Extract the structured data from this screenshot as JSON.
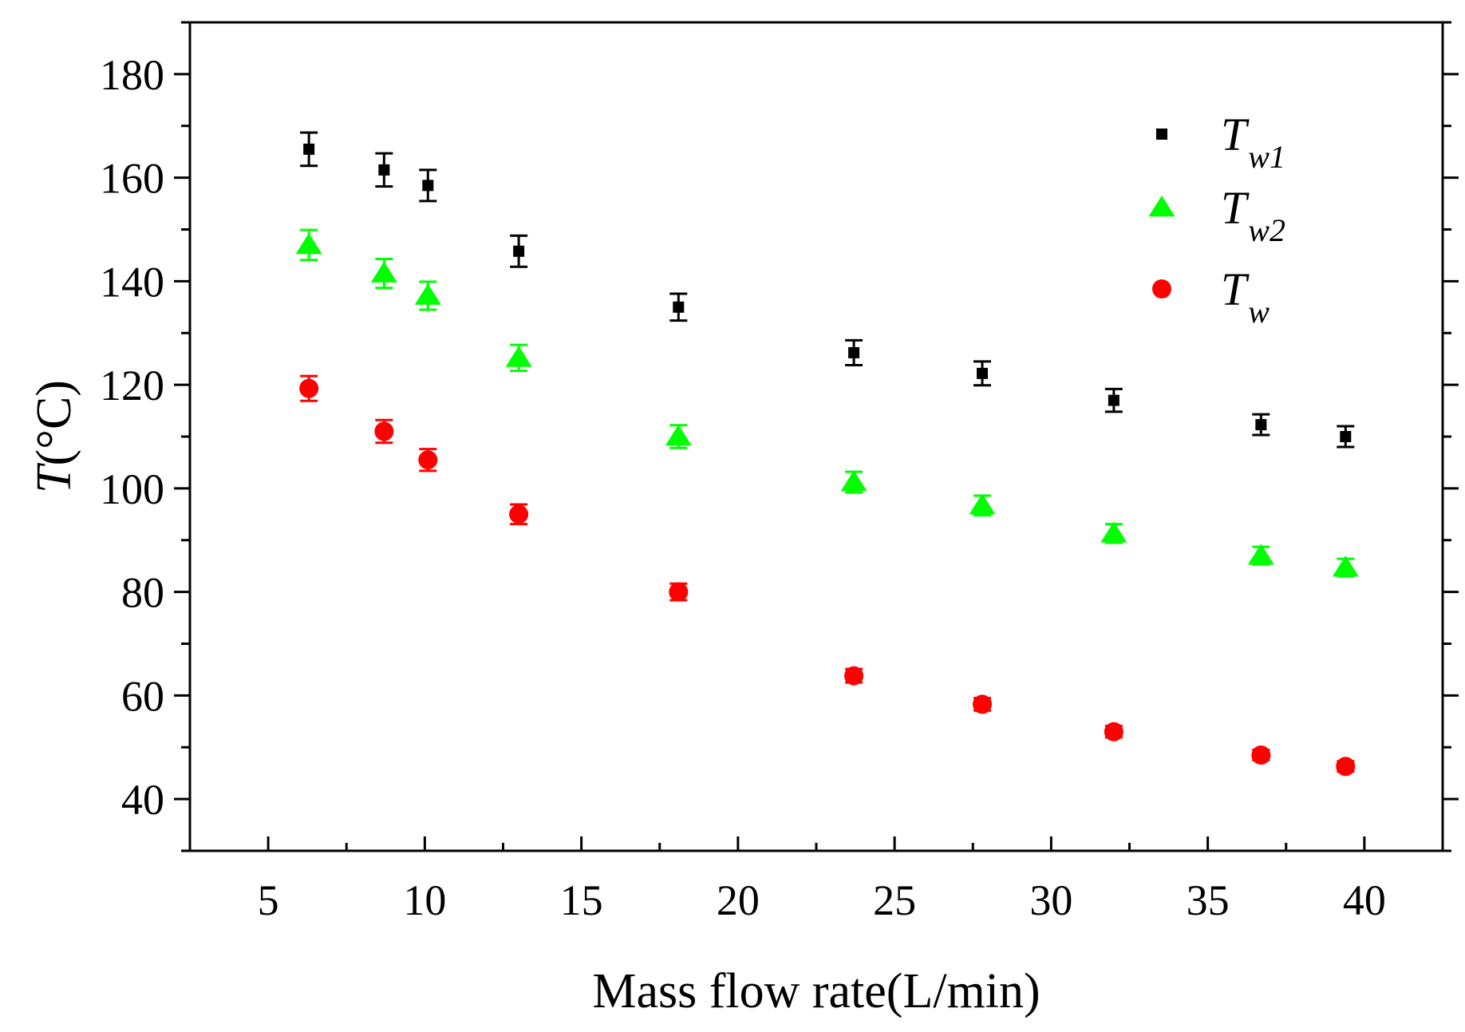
{
  "chart_data": {
    "type": "scatter",
    "title": "",
    "xlabel": "Mass flow rate(L/min)",
    "ylabel_italic": "T",
    "ylabel_rest": "(°C)",
    "xlim": [
      2.5,
      42.5
    ],
    "ylim": [
      30,
      190
    ],
    "xticks": [
      5,
      10,
      15,
      20,
      25,
      30,
      35,
      40
    ],
    "xtick_labels": [
      "5",
      "10",
      "15",
      "20",
      "25",
      "30",
      "35",
      "40"
    ],
    "yticks": [
      40,
      60,
      80,
      100,
      120,
      140,
      160,
      180
    ],
    "ytick_labels": [
      "40",
      "60",
      "80",
      "100",
      "120",
      "140",
      "160",
      "180"
    ],
    "legend_position": "top-right",
    "x": [
      6.3,
      8.7,
      10.1,
      13.0,
      18.1,
      23.7,
      27.8,
      32.0,
      36.7,
      39.4
    ],
    "series": [
      {
        "name": "T_w1",
        "legend_main": "T",
        "legend_sub": "w1",
        "marker": "square",
        "color": "#000000",
        "values": [
          165.5,
          161.5,
          158.5,
          145.8,
          135.0,
          126.2,
          122.2,
          117.0,
          112.3,
          110.0
        ],
        "errors": [
          3.2,
          3.2,
          3.0,
          3.0,
          2.6,
          2.4,
          2.3,
          2.2,
          2.0,
          2.0
        ]
      },
      {
        "name": "T_w2",
        "legend_main": "T",
        "legend_sub": "w2",
        "marker": "triangle",
        "color": "#00ff00",
        "values": [
          147.0,
          141.5,
          137.2,
          125.2,
          110.0,
          101.2,
          96.7,
          91.3,
          87.0,
          84.7
        ],
        "errors": [
          2.9,
          2.8,
          2.7,
          2.5,
          2.2,
          2.0,
          1.9,
          1.8,
          1.7,
          1.7
        ]
      },
      {
        "name": "T_w",
        "legend_main": "T",
        "legend_sub": "w",
        "marker": "circle",
        "color": "#ff0000",
        "values": [
          119.3,
          111.0,
          105.5,
          95.0,
          80.0,
          63.8,
          58.3,
          53.0,
          48.5,
          46.3
        ],
        "errors": [
          2.4,
          2.2,
          2.1,
          1.9,
          1.6,
          1.3,
          1.2,
          1.1,
          1.0,
          1.0
        ]
      }
    ]
  }
}
